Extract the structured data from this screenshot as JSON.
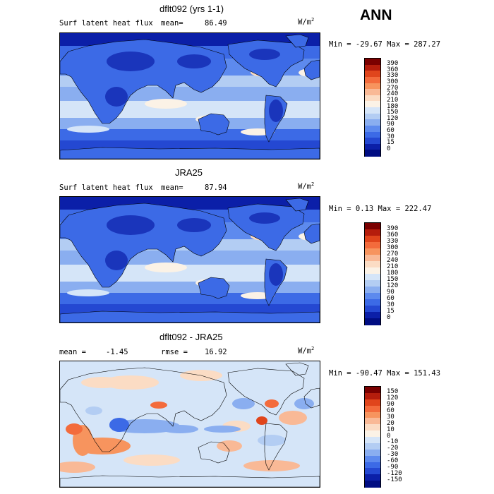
{
  "season": "ANN",
  "panels": [
    {
      "title": "dflt092 (yrs 1-1)",
      "left_label": "Surf latent heat flux",
      "stat_label": "mean=",
      "stat_value": "86.49",
      "units": "W/m",
      "units_exp": "2",
      "range_text": "Min = -29.67 Max = 287.27",
      "levels": [
        "390",
        "360",
        "330",
        "300",
        "270",
        "240",
        "210",
        "180",
        "150",
        "120",
        "90",
        "60",
        "30",
        "15",
        "0"
      ],
      "colors": [
        "#7a0000",
        "#b51d0c",
        "#e0451c",
        "#f36b3c",
        "#f7945e",
        "#f9b996",
        "#fbdcc4",
        "#fbf2e6",
        "#d5e5f8",
        "#b3cdf3",
        "#8aaef0",
        "#5d8aee",
        "#3c6ae6",
        "#2448d2",
        "#0b1fa8",
        "#000d82"
      ],
      "kind": "flux"
    },
    {
      "title": "JRA25",
      "left_label": "Surf latent heat flux",
      "stat_label": "mean=",
      "stat_value": "87.94",
      "units": "W/m",
      "units_exp": "2",
      "range_text": "Min = 0.13 Max = 222.47",
      "levels": [
        "390",
        "360",
        "330",
        "300",
        "270",
        "240",
        "210",
        "180",
        "150",
        "120",
        "90",
        "60",
        "30",
        "15",
        "0"
      ],
      "colors": [
        "#7a0000",
        "#b51d0c",
        "#e0451c",
        "#f36b3c",
        "#f7945e",
        "#f9b996",
        "#fbdcc4",
        "#fbf2e6",
        "#d5e5f8",
        "#b3cdf3",
        "#8aaef0",
        "#5d8aee",
        "#3c6ae6",
        "#2448d2",
        "#0b1fa8",
        "#000d82"
      ],
      "kind": "flux"
    },
    {
      "title": "dflt092 - JRA25",
      "left_label": "mean =",
      "left_value": "-1.45",
      "stat_label": "rmse =",
      "stat_value": "16.92",
      "units": "W/m",
      "units_exp": "2",
      "range_text": "Min = -90.47 Max = 151.43",
      "levels": [
        "150",
        "120",
        "90",
        "60",
        "30",
        "20",
        "10",
        "0",
        "-10",
        "-20",
        "-30",
        "-60",
        "-90",
        "-120",
        "-150"
      ],
      "colors": [
        "#7a0000",
        "#b51d0c",
        "#e0451c",
        "#f36b3c",
        "#f7945e",
        "#f9b996",
        "#fbdcc4",
        "#fbf2e6",
        "#d5e5f8",
        "#b3cdf3",
        "#8aaef0",
        "#5d8aee",
        "#3c6ae6",
        "#2448d2",
        "#0b1fa8",
        "#000d82"
      ],
      "kind": "diff"
    }
  ]
}
